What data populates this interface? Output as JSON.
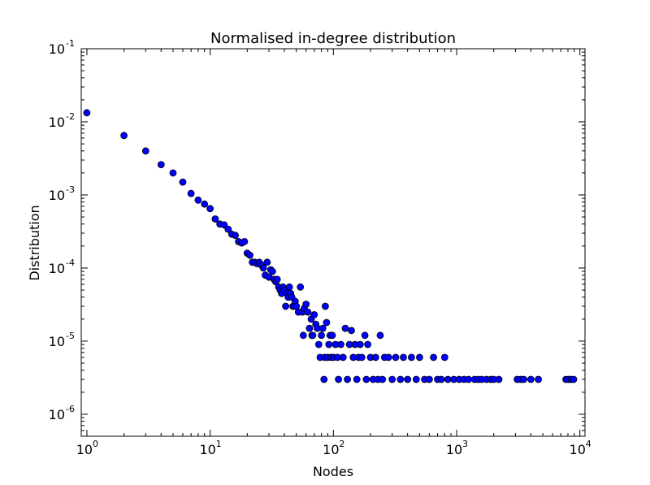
{
  "chart_data": {
    "type": "scatter",
    "title": "Normalised in-degree distribution",
    "xlabel": "Nodes",
    "ylabel": "Distribution",
    "xscale": "log",
    "yscale": "log",
    "xlim": [
      0.9,
      11000
    ],
    "ylim": [
      5e-07,
      0.1
    ],
    "grid": false,
    "marker_color": "#0000ff",
    "marker_edge": "#000000",
    "x_ticks": [
      {
        "base": "10",
        "exp": "0",
        "value": 1
      },
      {
        "base": "10",
        "exp": "1",
        "value": 10
      },
      {
        "base": "10",
        "exp": "2",
        "value": 100
      },
      {
        "base": "10",
        "exp": "3",
        "value": 1000
      },
      {
        "base": "10",
        "exp": "4",
        "value": 10000
      }
    ],
    "y_ticks": [
      {
        "base": "10",
        "exp": "-1",
        "value": 0.1
      },
      {
        "base": "10",
        "exp": "-2",
        "value": 0.01
      },
      {
        "base": "10",
        "exp": "-3",
        "value": 0.001
      },
      {
        "base": "10",
        "exp": "-4",
        "value": 0.0001
      },
      {
        "base": "10",
        "exp": "-5",
        "value": 1e-05
      },
      {
        "base": "10",
        "exp": "-6",
        "value": 1e-06
      }
    ],
    "points": [
      [
        1,
        0.0133
      ],
      [
        2,
        0.0065
      ],
      [
        3,
        0.004
      ],
      [
        4,
        0.0026
      ],
      [
        5,
        0.002
      ],
      [
        6,
        0.0015
      ],
      [
        7,
        0.00105
      ],
      [
        8,
        0.00085
      ],
      [
        9,
        0.00075
      ],
      [
        10,
        0.00065
      ],
      [
        11,
        0.00047
      ],
      [
        12,
        0.0004
      ],
      [
        13,
        0.00039
      ],
      [
        14,
        0.00034
      ],
      [
        15,
        0.00029
      ],
      [
        16,
        0.00028
      ],
      [
        17,
        0.00023
      ],
      [
        18,
        0.00022
      ],
      [
        19,
        0.00023
      ],
      [
        20,
        0.00016
      ],
      [
        21,
        0.00015
      ],
      [
        22,
        0.00012
      ],
      [
        23,
        0.00012
      ],
      [
        24,
        0.000115
      ],
      [
        25,
        0.00012
      ],
      [
        26,
        0.00011
      ],
      [
        27,
        0.0001
      ],
      [
        28,
        8e-05
      ],
      [
        29,
        0.00012
      ],
      [
        30,
        7.5e-05
      ],
      [
        31,
        9.5e-05
      ],
      [
        32,
        9e-05
      ],
      [
        33,
        7e-05
      ],
      [
        34,
        6.5e-05
      ],
      [
        35,
        7e-05
      ],
      [
        36,
        5.5e-05
      ],
      [
        37,
        5e-05
      ],
      [
        38,
        4.5e-05
      ],
      [
        39,
        5.5e-05
      ],
      [
        40,
        5e-05
      ],
      [
        41,
        3e-05
      ],
      [
        42,
        4.5e-05
      ],
      [
        43,
        4e-05
      ],
      [
        44,
        5.5e-05
      ],
      [
        45,
        4.5e-05
      ],
      [
        46,
        4e-05
      ],
      [
        47,
        3e-05
      ],
      [
        48,
        3e-05
      ],
      [
        49,
        3.5e-05
      ],
      [
        50,
        3e-05
      ],
      [
        52,
        2.5e-05
      ],
      [
        54,
        5.5e-05
      ],
      [
        56,
        2.5e-05
      ],
      [
        57,
        1.2e-05
      ],
      [
        58,
        2.8e-05
      ],
      [
        60,
        3.2e-05
      ],
      [
        62,
        2.5e-05
      ],
      [
        64,
        1.5e-05
      ],
      [
        66,
        2e-05
      ],
      [
        67,
        1.2e-05
      ],
      [
        68,
        1.2e-05
      ],
      [
        70,
        2.3e-05
      ],
      [
        72,
        1.7e-05
      ],
      [
        74,
        1.5e-05
      ],
      [
        76,
        9e-06
      ],
      [
        78,
        6e-06
      ],
      [
        80,
        1.2e-05
      ],
      [
        82,
        1.5e-05
      ],
      [
        84,
        3e-06
      ],
      [
        85,
        6e-06
      ],
      [
        86,
        3e-05
      ],
      [
        88,
        1.8e-05
      ],
      [
        90,
        6e-06
      ],
      [
        92,
        9e-06
      ],
      [
        94,
        1.2e-05
      ],
      [
        96,
        6e-06
      ],
      [
        98,
        1.2e-05
      ],
      [
        100,
        6e-06
      ],
      [
        104,
        9e-06
      ],
      [
        108,
        6e-06
      ],
      [
        110,
        3e-06
      ],
      [
        115,
        9e-06
      ],
      [
        120,
        6e-06
      ],
      [
        125,
        1.5e-05
      ],
      [
        130,
        3e-06
      ],
      [
        135,
        9e-06
      ],
      [
        140,
        1.4e-05
      ],
      [
        145,
        6e-06
      ],
      [
        150,
        9e-06
      ],
      [
        155,
        3e-06
      ],
      [
        160,
        6e-06
      ],
      [
        165,
        9e-06
      ],
      [
        170,
        6e-06
      ],
      [
        180,
        1.2e-05
      ],
      [
        185,
        3e-06
      ],
      [
        190,
        9e-06
      ],
      [
        200,
        6e-06
      ],
      [
        210,
        3e-06
      ],
      [
        220,
        6e-06
      ],
      [
        230,
        3e-06
      ],
      [
        240,
        1.2e-05
      ],
      [
        250,
        3e-06
      ],
      [
        260,
        6e-06
      ],
      [
        280,
        6e-06
      ],
      [
        300,
        3e-06
      ],
      [
        320,
        6e-06
      ],
      [
        350,
        3e-06
      ],
      [
        370,
        6e-06
      ],
      [
        400,
        3e-06
      ],
      [
        430,
        6e-06
      ],
      [
        470,
        3e-06
      ],
      [
        500,
        6e-06
      ],
      [
        550,
        3e-06
      ],
      [
        600,
        3e-06
      ],
      [
        650,
        6e-06
      ],
      [
        700,
        3e-06
      ],
      [
        750,
        3e-06
      ],
      [
        800,
        6e-06
      ],
      [
        850,
        3e-06
      ],
      [
        950,
        3e-06
      ],
      [
        1050,
        3e-06
      ],
      [
        1150,
        3e-06
      ],
      [
        1250,
        3e-06
      ],
      [
        1400,
        3e-06
      ],
      [
        1500,
        3e-06
      ],
      [
        1600,
        3e-06
      ],
      [
        1750,
        3e-06
      ],
      [
        1900,
        3e-06
      ],
      [
        2000,
        3e-06
      ],
      [
        2200,
        3e-06
      ],
      [
        3100,
        3e-06
      ],
      [
        3300,
        3e-06
      ],
      [
        3500,
        3e-06
      ],
      [
        4000,
        3e-06
      ],
      [
        4600,
        3e-06
      ],
      [
        7700,
        3e-06
      ],
      [
        8100,
        3e-06
      ],
      [
        8500,
        3e-06
      ],
      [
        8900,
        3e-06
      ]
    ]
  }
}
